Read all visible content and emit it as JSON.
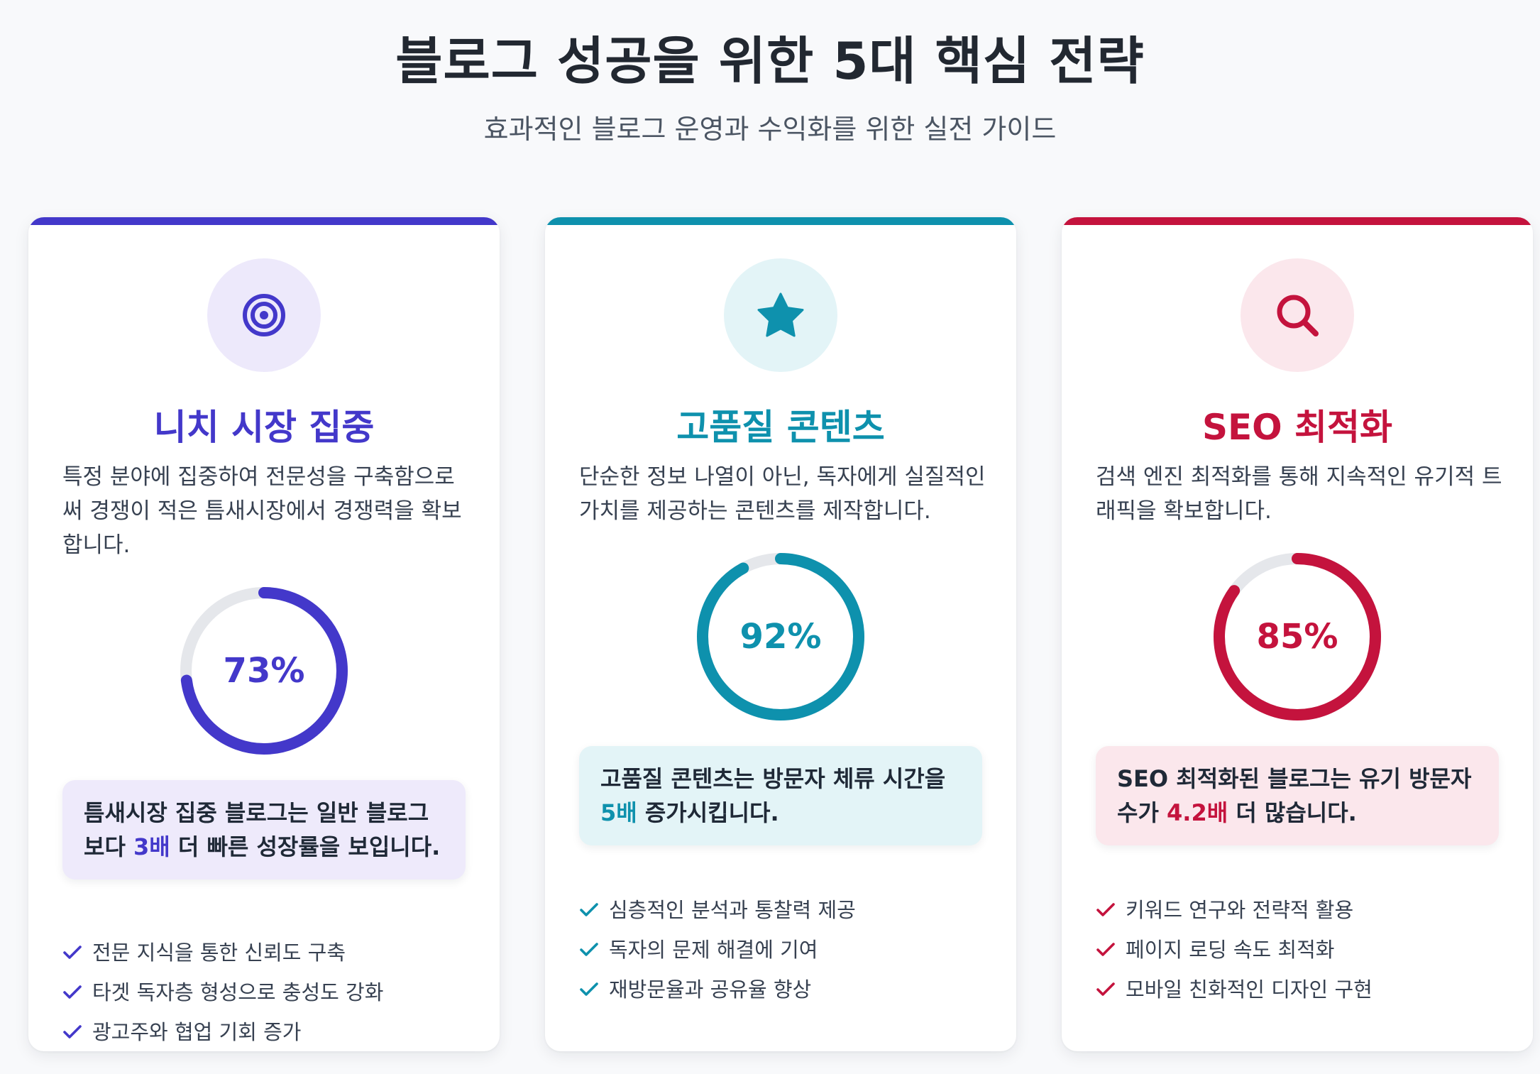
{
  "header": {
    "title": "블로그 성공을 위한 5대 핵심 전략",
    "subtitle": "효과적인 블로그 운영과 수익화를 위한 실전 가이드"
  },
  "cards": [
    {
      "icon": "target-icon",
      "accent": "#4338ca",
      "icon_bg": "#ede9fb",
      "box_bg": "#eeeafb",
      "ring_track": "#e5e7eb",
      "title": "니치 시장 집중",
      "description": "특정 분야에 집중하여 전문성을 구축함으로써 경쟁이 적은 틈새시장에서 경쟁력을 확보합니다.",
      "progress": 0.73,
      "progress_label": "73%",
      "highlight": {
        "before": "틈새시장 집중 블로그는 일반 블로그보다 ",
        "strong": "3배",
        "after": " 더 빠른 성장률을 보입니다."
      },
      "checks": [
        "전문 지식을 통한 신뢰도 구축",
        "타겟 독자층 형성으로 충성도 강화",
        "광고주와 협업 기회 증가"
      ]
    },
    {
      "icon": "star-icon",
      "accent": "#0e91ad",
      "icon_bg": "#e3f4f7",
      "box_bg": "#e3f4f7",
      "ring_track": "#e5e7eb",
      "title": "고품질 콘텐츠",
      "description": "단순한 정보 나열이 아닌, 독자에게 실질적인 가치를 제공하는 콘텐츠를 제작합니다.",
      "progress": 0.92,
      "progress_label": "92%",
      "highlight": {
        "before": "고품질 콘텐츠는 방문자 체류 시간을 ",
        "strong": "5배",
        "after": " 증가시킵니다."
      },
      "checks": [
        "심층적인 분석과 통찰력 제공",
        "독자의 문제 해결에 기여",
        "재방문율과 공유율 향상"
      ]
    },
    {
      "icon": "search-icon",
      "accent": "#c4133d",
      "icon_bg": "#fbe7ec",
      "box_bg": "#fbe7ec",
      "ring_track": "#e5e7eb",
      "title": "SEO 최적화",
      "description": "검색 엔진 최적화를 통해 지속적인 유기적 트래픽을 확보합니다.",
      "progress": 0.85,
      "progress_label": "85%",
      "highlight": {
        "before": "SEO 최적화된 블로그는 유기 방문자 수가 ",
        "strong": "4.2배",
        "after": " 더 많습니다."
      },
      "checks": [
        "키워드 연구와 전략적 활용",
        "페이지 로딩 속도 최적화",
        "모바일 친화적인 디자인 구현"
      ]
    }
  ]
}
